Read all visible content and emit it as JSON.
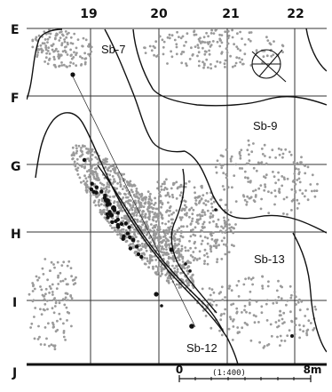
{
  "grid": {
    "columns": [
      "19",
      "20",
      "21",
      "22"
    ],
    "rows": [
      "E",
      "F",
      "G",
      "H",
      "I",
      "J"
    ]
  },
  "features": [
    {
      "id": "sb7",
      "label": "Sb-7"
    },
    {
      "id": "sb9",
      "label": "Sb-9"
    },
    {
      "id": "sb13",
      "label": "Sb-13"
    },
    {
      "id": "sb12",
      "label": "Sb-12"
    }
  ],
  "scale_bar": {
    "start": "0",
    "ratio": "(1:400)",
    "end": "8m"
  },
  "colors": {
    "dots": "#9a9a9a",
    "lines": "#111111",
    "artifacts": "#111111"
  },
  "icons": [
    "north-arrow-icon"
  ]
}
